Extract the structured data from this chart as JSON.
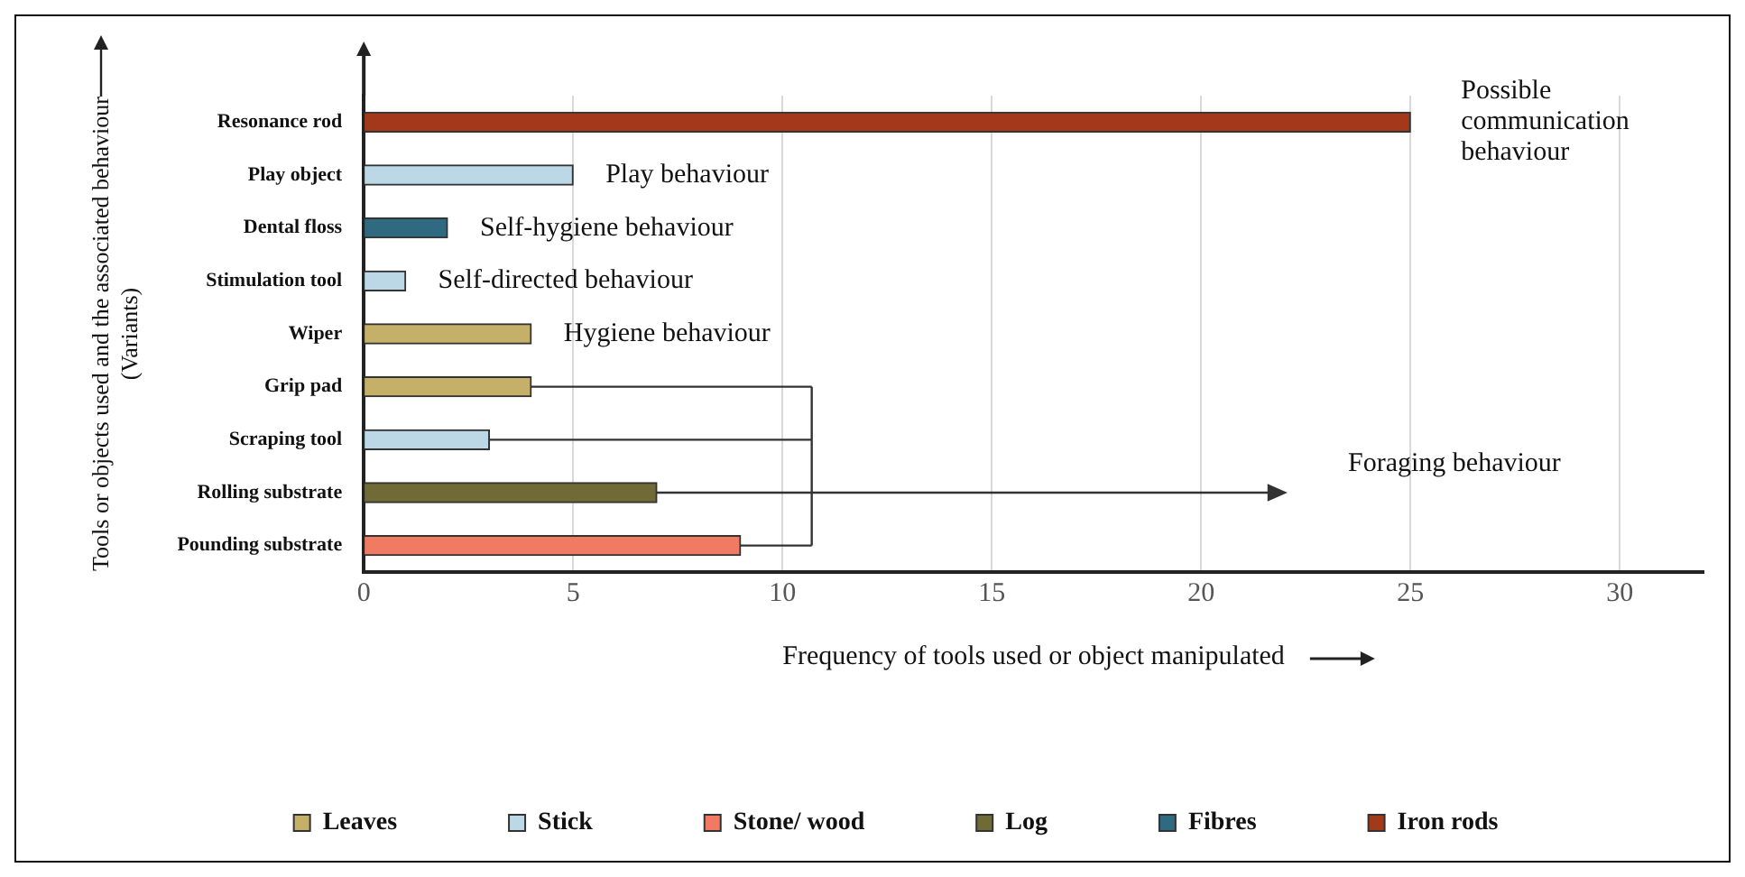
{
  "chart_data": {
    "type": "bar",
    "orientation": "horizontal",
    "xlabel": "Frequency of tools used or object manipulated",
    "ylabel": "Tools or objects used and the associated behaviour\n(Variants)",
    "categories": [
      "Resonance rod",
      "Play object",
      "Dental floss",
      "Stimulation tool",
      "Wiper",
      "Grip pad",
      "Scraping tool",
      "Rolling substrate",
      "Pounding substrate"
    ],
    "series": [
      {
        "name": "Leaves",
        "color": "#c4b068",
        "values": [
          null,
          null,
          null,
          null,
          4,
          4,
          null,
          null,
          null
        ]
      },
      {
        "name": "Stick",
        "color": "#bcd8e6",
        "values": [
          null,
          5,
          null,
          1,
          null,
          null,
          3,
          null,
          null
        ]
      },
      {
        "name": "Stone/ wood",
        "color": "#f07a62",
        "values": [
          null,
          null,
          null,
          null,
          null,
          null,
          null,
          null,
          9
        ]
      },
      {
        "name": "Log",
        "color": "#6f6a36",
        "values": [
          null,
          null,
          null,
          null,
          null,
          null,
          null,
          7,
          null
        ]
      },
      {
        "name": "Fibres",
        "color": "#2f6a80",
        "values": [
          null,
          null,
          2,
          null,
          null,
          null,
          null,
          null,
          null
        ]
      },
      {
        "name": "Iron rods",
        "color": "#a3391a",
        "values": [
          25,
          null,
          null,
          null,
          null,
          null,
          null,
          null,
          null
        ]
      }
    ],
    "xlim": [
      0,
      32
    ],
    "xticks": [
      0,
      5,
      10,
      15,
      20,
      25,
      30
    ],
    "grid": "x",
    "legend": "bottom",
    "annotations": [
      "Possible\ncommunication\nbehaviour",
      "Play behaviour",
      "Self-hygiene behaviour",
      "Self-directed behaviour",
      "Hygiene behaviour",
      "Foraging behaviour"
    ]
  }
}
